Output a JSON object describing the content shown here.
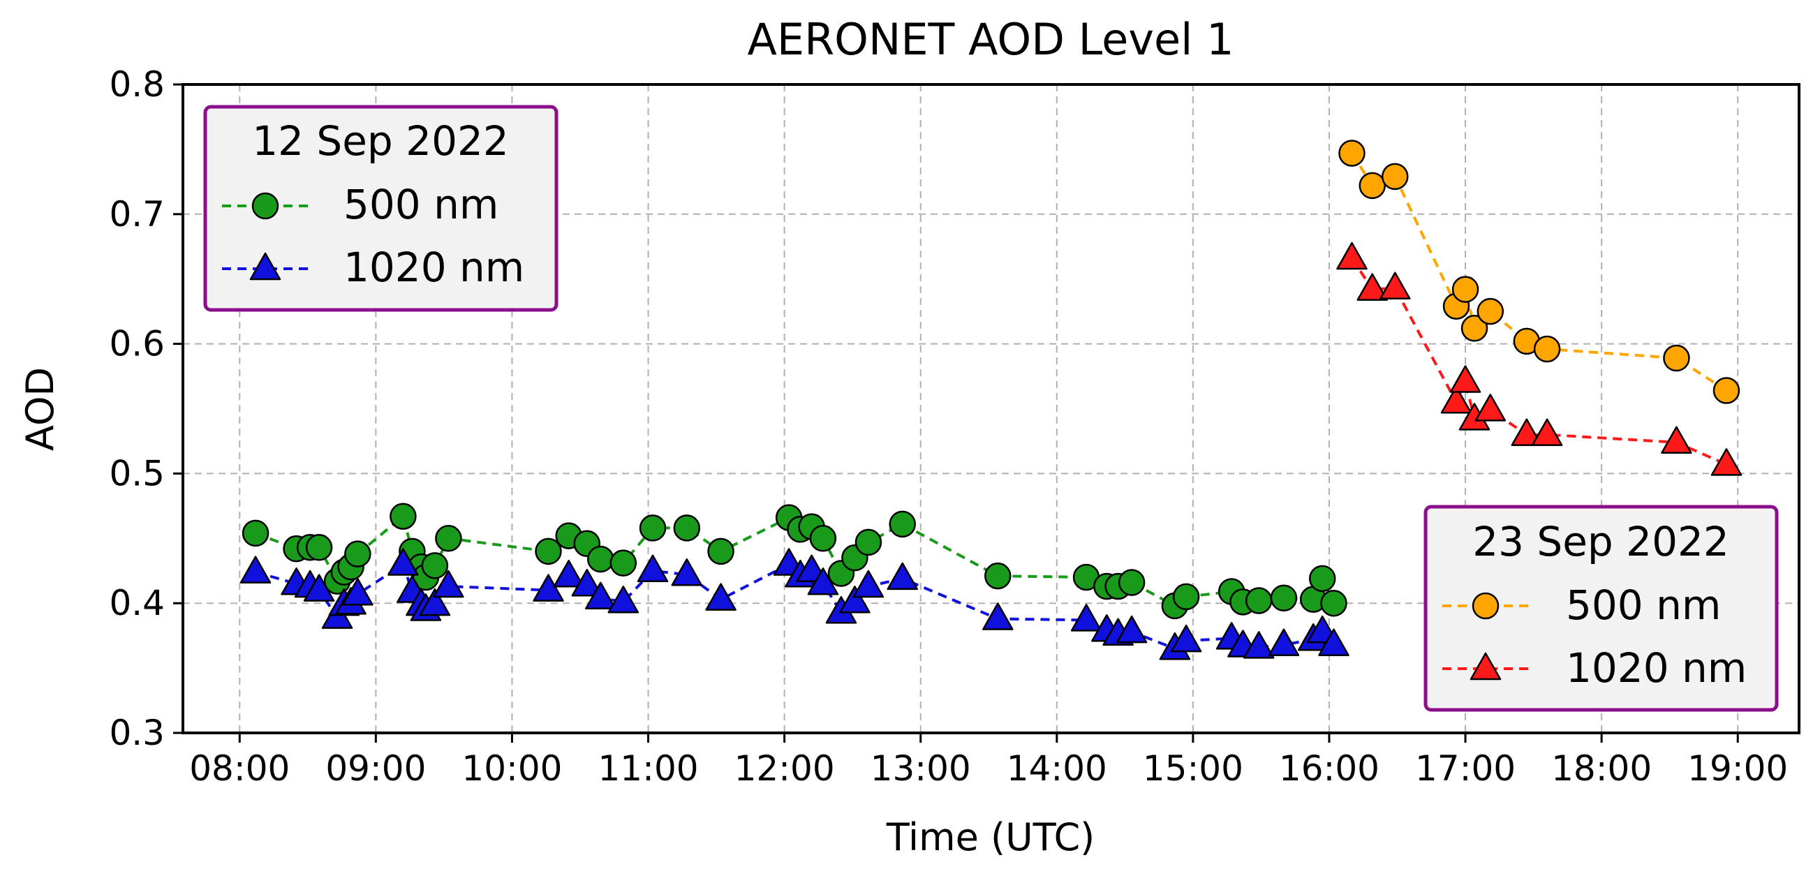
{
  "chart_data": {
    "type": "line",
    "title": "AERONET AOD Level 1",
    "xlabel": "Time (UTC)",
    "ylabel": "AOD",
    "xlim": [
      "07:35",
      "19:27"
    ],
    "ylim": [
      0.3,
      0.8
    ],
    "x_ticks": [
      "08:00",
      "09:00",
      "10:00",
      "11:00",
      "12:00",
      "13:00",
      "14:00",
      "15:00",
      "16:00",
      "17:00",
      "18:00",
      "19:00"
    ],
    "y_ticks": [
      "0.3",
      "0.4",
      "0.5",
      "0.6",
      "0.7",
      "0.8"
    ],
    "grid": true,
    "legends": [
      {
        "title": "12 Sep 2022",
        "placement": "upper-left",
        "entries": [
          "500 nm",
          "1020 nm"
        ]
      },
      {
        "title": "23 Sep 2022",
        "placement": "lower-right",
        "entries": [
          "500 nm",
          "1020 nm"
        ]
      }
    ],
    "series": [
      {
        "name": "500 nm",
        "group": "12 Sep 2022",
        "color": "#1a9a1a",
        "marker": "circle",
        "x": [
          "08:07",
          "08:25",
          "08:31",
          "08:35",
          "08:43",
          "08:46",
          "08:49",
          "08:52",
          "09:12",
          "09:16",
          "09:20",
          "09:22",
          "09:26",
          "09:32",
          "10:16",
          "10:25",
          "10:33",
          "10:39",
          "10:49",
          "11:02",
          "11:17",
          "11:32",
          "12:02",
          "12:07",
          "12:12",
          "12:17",
          "12:25",
          "12:31",
          "12:37",
          "12:52",
          "13:34",
          "14:13",
          "14:22",
          "14:27",
          "14:33",
          "14:52",
          "14:57",
          "15:17",
          "15:22",
          "15:29",
          "15:40",
          "15:53",
          "15:57",
          "16:02"
        ],
        "y": [
          0.454,
          0.442,
          0.443,
          0.443,
          0.417,
          0.424,
          0.428,
          0.438,
          0.467,
          0.44,
          0.428,
          0.42,
          0.429,
          0.45,
          0.44,
          0.452,
          0.446,
          0.434,
          0.431,
          0.458,
          0.458,
          0.44,
          0.466,
          0.457,
          0.459,
          0.45,
          0.423,
          0.435,
          0.447,
          0.461,
          0.421,
          0.42,
          0.413,
          0.413,
          0.416,
          0.398,
          0.405,
          0.409,
          0.401,
          0.402,
          0.404,
          0.403,
          0.419,
          0.4
        ]
      },
      {
        "name": "1020 nm",
        "group": "12 Sep 2022",
        "color": "#1111dd",
        "marker": "triangle",
        "x": [
          "08:07",
          "08:25",
          "08:31",
          "08:35",
          "08:43",
          "08:46",
          "08:49",
          "08:52",
          "09:12",
          "09:16",
          "09:20",
          "09:22",
          "09:26",
          "09:32",
          "10:16",
          "10:25",
          "10:33",
          "10:39",
          "10:49",
          "11:02",
          "11:17",
          "11:32",
          "12:02",
          "12:07",
          "12:12",
          "12:17",
          "12:25",
          "12:31",
          "12:37",
          "12:52",
          "13:34",
          "14:13",
          "14:22",
          "14:27",
          "14:33",
          "14:52",
          "14:57",
          "15:17",
          "15:22",
          "15:29",
          "15:40",
          "15:53",
          "15:57",
          "16:02"
        ],
        "y": [
          0.424,
          0.415,
          0.413,
          0.41,
          0.389,
          0.399,
          0.4,
          0.407,
          0.43,
          0.409,
          0.399,
          0.395,
          0.399,
          0.413,
          0.41,
          0.421,
          0.414,
          0.404,
          0.401,
          0.425,
          0.422,
          0.403,
          0.43,
          0.421,
          0.425,
          0.415,
          0.393,
          0.401,
          0.413,
          0.419,
          0.388,
          0.387,
          0.379,
          0.376,
          0.378,
          0.365,
          0.371,
          0.373,
          0.367,
          0.366,
          0.368,
          0.372,
          0.378,
          0.368
        ]
      },
      {
        "name": "500 nm",
        "group": "23 Sep 2022",
        "color": "#ffa500",
        "marker": "circle",
        "x": [
          "16:10",
          "16:19",
          "16:29",
          "16:56",
          "17:00",
          "17:04",
          "17:11",
          "17:27",
          "17:36",
          "18:33",
          "18:55"
        ],
        "y": [
          0.747,
          0.722,
          0.729,
          0.629,
          0.642,
          0.612,
          0.625,
          0.602,
          0.596,
          0.589,
          0.564
        ]
      },
      {
        "name": "1020 nm",
        "group": "23 Sep 2022",
        "color": "#ff1a1a",
        "marker": "triangle",
        "x": [
          "16:10",
          "16:19",
          "16:29",
          "16:56",
          "17:00",
          "17:04",
          "17:11",
          "17:27",
          "17:36",
          "18:33",
          "18:55"
        ],
        "y": [
          0.666,
          0.642,
          0.643,
          0.555,
          0.571,
          0.542,
          0.549,
          0.53,
          0.53,
          0.524,
          0.507
        ]
      }
    ]
  }
}
